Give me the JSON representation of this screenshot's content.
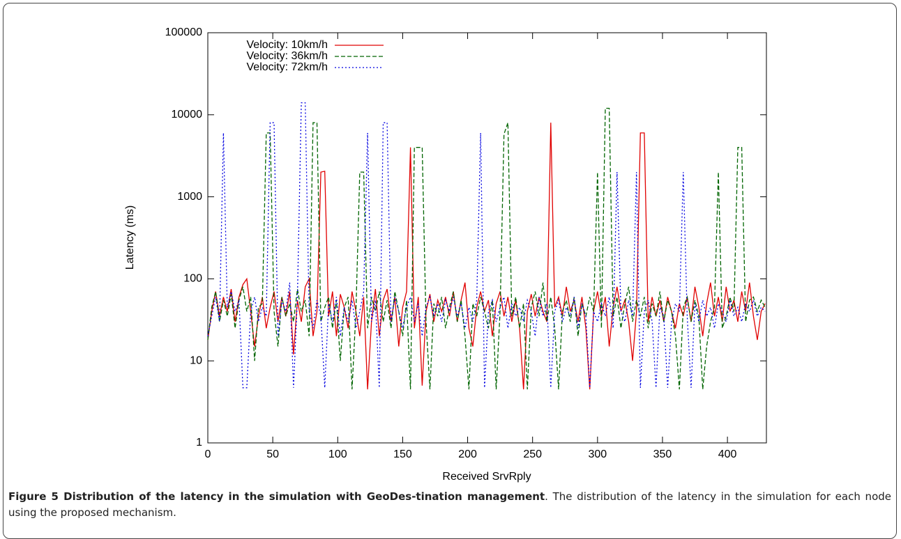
{
  "chart_data": {
    "type": "line",
    "x_label": "Received SrvRply",
    "y_label": "Latency (ms)",
    "log_y": true,
    "legend": "top-left",
    "xlim": [
      0,
      430
    ],
    "ylim": [
      1,
      100000
    ],
    "xticks": [
      0,
      50,
      100,
      150,
      200,
      250,
      300,
      350,
      400
    ],
    "yticks": [
      1,
      10,
      100,
      1000,
      10000,
      100000
    ],
    "x": [
      0,
      3,
      6,
      9,
      12,
      15,
      18,
      21,
      24,
      27,
      30,
      33,
      36,
      39,
      42,
      45,
      48,
      51,
      54,
      57,
      60,
      63,
      66,
      69,
      72,
      75,
      78,
      81,
      84,
      87,
      90,
      93,
      96,
      99,
      102,
      105,
      108,
      111,
      114,
      117,
      120,
      123,
      126,
      129,
      132,
      135,
      138,
      141,
      144,
      147,
      150,
      153,
      156,
      159,
      162,
      165,
      168,
      171,
      174,
      177,
      180,
      183,
      186,
      189,
      192,
      195,
      198,
      201,
      204,
      207,
      210,
      213,
      216,
      219,
      222,
      225,
      228,
      231,
      234,
      237,
      240,
      243,
      246,
      249,
      252,
      255,
      258,
      261,
      264,
      267,
      270,
      273,
      276,
      279,
      282,
      285,
      288,
      291,
      294,
      297,
      300,
      303,
      306,
      309,
      312,
      315,
      318,
      321,
      324,
      327,
      330,
      333,
      336,
      339,
      342,
      345,
      348,
      351,
      354,
      357,
      360,
      363,
      366,
      369,
      372,
      375,
      378,
      381,
      384,
      387,
      390,
      393,
      396,
      399,
      402,
      405,
      408,
      411,
      414,
      417,
      420,
      423,
      426,
      429
    ],
    "series": [
      {
        "name": "Velocity: 10km/h",
        "color": "#e00000",
        "dash": "solid",
        "values": [
          18,
          40,
          70,
          35,
          60,
          40,
          75,
          30,
          60,
          85,
          100,
          40,
          15,
          35,
          60,
          25,
          45,
          70,
          30,
          60,
          35,
          70,
          12,
          55,
          30,
          80,
          100,
          20,
          40,
          2000,
          2050,
          35,
          70,
          20,
          65,
          45,
          25,
          70,
          40,
          20,
          60,
          4.5,
          30,
          75,
          20,
          55,
          75,
          30,
          60,
          15,
          45,
          70,
          4000,
          25,
          60,
          5,
          40,
          65,
          30,
          55,
          40,
          60,
          35,
          70,
          30,
          55,
          90,
          25,
          15,
          45,
          70,
          40,
          55,
          20,
          50,
          70,
          35,
          60,
          30,
          55,
          25,
          4.5,
          40,
          65,
          35,
          60,
          40,
          30,
          8000,
          45,
          60,
          35,
          80,
          40,
          55,
          30,
          60,
          25,
          4.5,
          40,
          70,
          35,
          60,
          15,
          45,
          80,
          40,
          55,
          30,
          10,
          40,
          6000,
          6000,
          30,
          60,
          35,
          55,
          30,
          60,
          40,
          25,
          50,
          35,
          60,
          30,
          80,
          45,
          20,
          50,
          90,
          35,
          60,
          30,
          80,
          40,
          55,
          30,
          70,
          40,
          90,
          35,
          18,
          40,
          50
        ]
      },
      {
        "name": "Velocity: 36km/h",
        "color": "#006400",
        "dash": "dashed",
        "values": [
          18,
          45,
          70,
          30,
          55,
          35,
          65,
          25,
          55,
          80,
          40,
          60,
          10,
          45,
          50,
          6000,
          6000,
          40,
          15,
          60,
          35,
          50,
          30,
          75,
          40,
          55,
          20,
          8000,
          8000,
          30,
          45,
          60,
          25,
          55,
          10,
          45,
          60,
          4.5,
          40,
          2000,
          2000,
          25,
          60,
          40,
          70,
          30,
          55,
          25,
          70,
          40,
          20,
          55,
          4.5,
          4000,
          4000,
          4000,
          30,
          4.5,
          50,
          35,
          60,
          25,
          45,
          70,
          30,
          55,
          20,
          4.5,
          50,
          35,
          60,
          40,
          25,
          55,
          4.5,
          40,
          5800,
          8000,
          35,
          60,
          25,
          50,
          4.5,
          45,
          70,
          35,
          90,
          30,
          60,
          25,
          4.5,
          40,
          55,
          30,
          60,
          20,
          50,
          35,
          60,
          40,
          2000,
          25,
          12000,
          12000,
          35,
          60,
          25,
          50,
          80,
          30,
          55,
          35,
          60,
          25,
          50,
          35,
          70,
          30,
          55,
          40,
          20,
          4.5,
          45,
          60,
          30,
          55,
          35,
          4.5,
          15,
          30,
          45,
          2000,
          25,
          35,
          60,
          40,
          4000,
          4000,
          30,
          55,
          60,
          40,
          55,
          45
        ]
      },
      {
        "name": "Velocity: 72km/h",
        "color": "#0000e0",
        "dash": "dotted",
        "values": [
          20,
          35,
          60,
          30,
          6000,
          45,
          70,
          40,
          55,
          4.7,
          4.7,
          40,
          60,
          30,
          45,
          35,
          8000,
          8000,
          20,
          55,
          40,
          90,
          4.7,
          60,
          14000,
          14000,
          40,
          25,
          55,
          35,
          4.7,
          50,
          30,
          60,
          20,
          45,
          30,
          55,
          25,
          40,
          70,
          6000,
          30,
          55,
          4.7,
          8000,
          8000,
          30,
          60,
          40,
          25,
          45,
          60,
          30,
          50,
          20,
          45,
          60,
          35,
          50,
          30,
          55,
          40,
          60,
          35,
          50,
          25,
          45,
          30,
          55,
          6000,
          4.7,
          40,
          55,
          30,
          45,
          60,
          25,
          50,
          35,
          45,
          30,
          55,
          40,
          20,
          60,
          35,
          50,
          4.7,
          40,
          55,
          30,
          45,
          35,
          60,
          25,
          50,
          35,
          4.7,
          40,
          30,
          50,
          35,
          60,
          25,
          2000,
          40,
          30,
          55,
          35,
          2000,
          4.7,
          40,
          55,
          30,
          4.7,
          45,
          35,
          4.7,
          30,
          50,
          40,
          2000,
          35,
          4.7,
          50,
          30,
          55,
          35,
          45,
          25,
          50,
          40,
          30,
          55,
          35,
          45,
          30,
          50,
          40,
          55,
          35,
          45,
          40
        ]
      }
    ]
  },
  "caption": {
    "title": "Figure 5 Distribution of the latency in the simulation with GeoDes-tination management",
    "text": ". The distribution of the latency in the simulation for each node using the proposed mechanism."
  }
}
